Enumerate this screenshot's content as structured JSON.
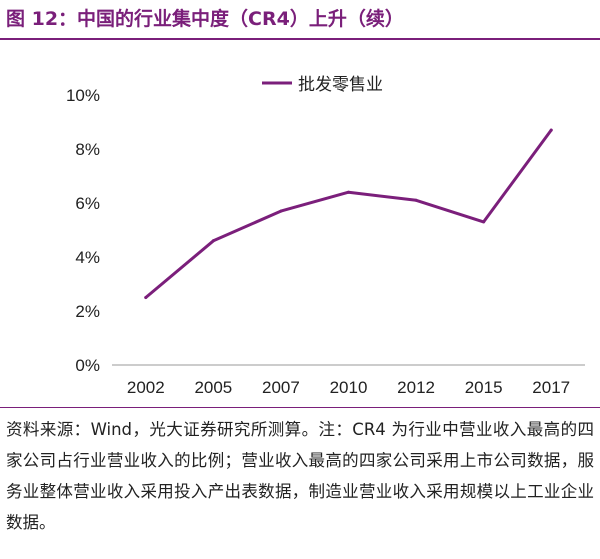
{
  "figure": {
    "title": "图 12：中国的行业集中度（CR4）上升（续）",
    "source_note": "资料来源：Wind，光大证券研究所测算。注：CR4 为行业中营业收入最高的四家公司占行业营业收入的比例；营业收入最高的四家公司采用上市公司数据，服务业整体营业收入采用投入产出表数据，制造业营业收入采用规模以上工业企业数据。"
  },
  "colors": {
    "accent": "#7a1f7a",
    "line": "#7b1f7b",
    "axis_text": "#222222"
  },
  "chart_data": {
    "type": "line",
    "title": "",
    "xlabel": "",
    "ylabel": "",
    "categories": [
      "2002",
      "2005",
      "2007",
      "2010",
      "2012",
      "2015",
      "2017"
    ],
    "series": [
      {
        "name": "批发零售业",
        "values": [
          0.025,
          0.046,
          0.057,
          0.064,
          0.061,
          0.053,
          0.087
        ]
      }
    ],
    "ylim": [
      0,
      0.1
    ],
    "yticks": [
      0,
      0.02,
      0.04,
      0.06,
      0.08,
      0.1
    ],
    "ytick_labels": [
      "0%",
      "2%",
      "4%",
      "6%",
      "8%",
      "10%"
    ],
    "legend_position": "top-center",
    "grid": false
  }
}
